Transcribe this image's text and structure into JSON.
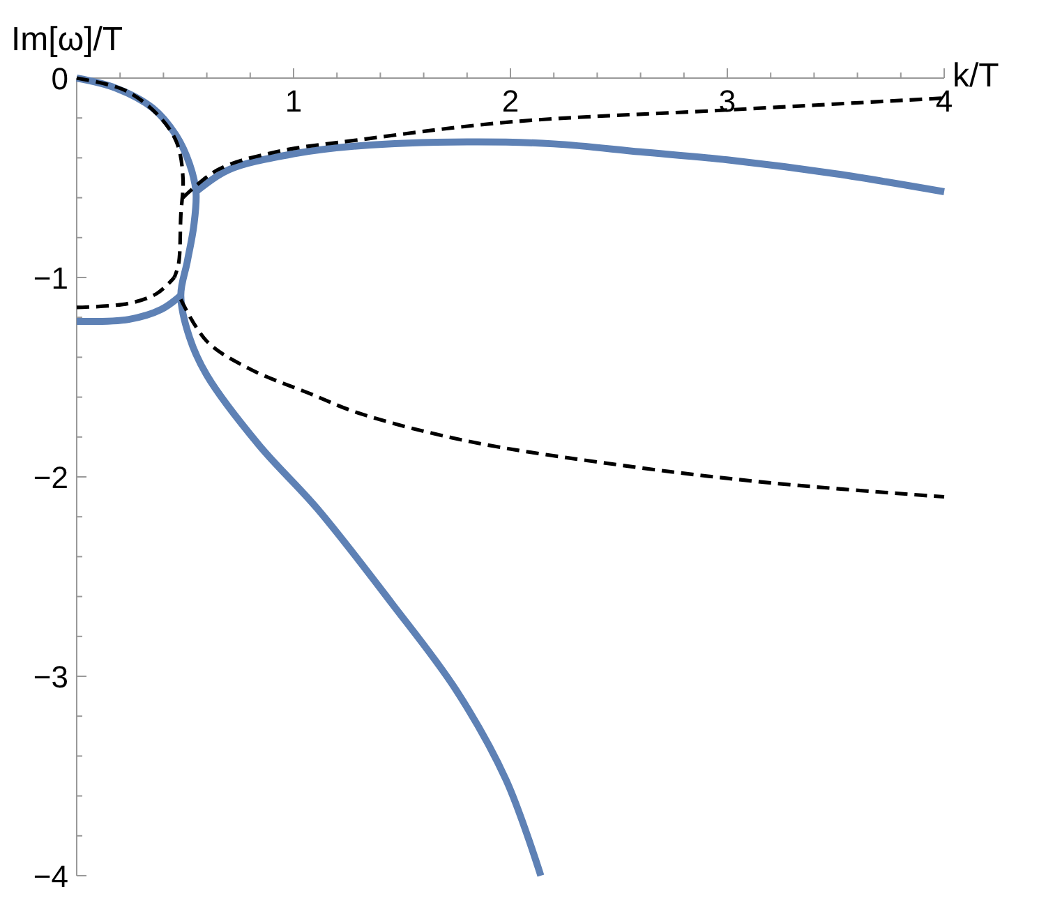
{
  "chart_data": {
    "type": "line",
    "xlabel": "k/T",
    "ylabel": "Im[ω]/T",
    "xlim": [
      0,
      4
    ],
    "ylim": [
      -4,
      0
    ],
    "xticks": [
      {
        "value": 0.2,
        "label": null
      },
      {
        "value": 0.4,
        "label": null
      },
      {
        "value": 0.6,
        "label": null
      },
      {
        "value": 0.8,
        "label": null
      },
      1,
      {
        "value": 1.2,
        "label": null
      },
      {
        "value": 1.4,
        "label": null
      },
      {
        "value": 1.6,
        "label": null
      },
      {
        "value": 1.8,
        "label": null
      },
      2,
      {
        "value": 2.2,
        "label": null
      },
      {
        "value": 2.4,
        "label": null
      },
      {
        "value": 2.6,
        "label": null
      },
      {
        "value": 2.8,
        "label": null
      },
      3,
      {
        "value": 3.2,
        "label": null
      },
      {
        "value": 3.4,
        "label": null
      },
      {
        "value": 3.6,
        "label": null
      },
      {
        "value": 3.8,
        "label": null
      },
      4
    ],
    "yticks": [
      0,
      {
        "value": -0.2,
        "label": null
      },
      {
        "value": -0.4,
        "label": null
      },
      {
        "value": -0.6,
        "label": null
      },
      {
        "value": -0.8,
        "label": null
      },
      -1,
      {
        "value": -1.2,
        "label": null
      },
      {
        "value": -1.4,
        "label": null
      },
      {
        "value": -1.6,
        "label": null
      },
      {
        "value": -1.8,
        "label": null
      },
      -2,
      {
        "value": -2.2,
        "label": null
      },
      {
        "value": -2.4,
        "label": null
      },
      {
        "value": -2.6,
        "label": null
      },
      {
        "value": -2.8,
        "label": null
      },
      -3,
      {
        "value": -3.2,
        "label": null
      },
      {
        "value": -3.4,
        "label": null
      },
      {
        "value": -3.6,
        "label": null
      },
      {
        "value": -3.8,
        "label": null
      },
      -4
    ],
    "grid": false,
    "marker": "none",
    "series": [
      {
        "color": "#5e81b5",
        "line_style": "solid",
        "x": [
          0,
          0.18,
          0.35,
          0.46,
          0.52,
          0.55,
          0.54,
          0.51,
          0.48,
          0.52,
          0.6,
          0.84,
          1.11,
          1.45,
          1.75,
          1.98,
          2.14
        ],
        "values": [
          0,
          -0.05,
          -0.15,
          -0.29,
          -0.43,
          -0.57,
          -0.74,
          -0.92,
          -1.09,
          -1.3,
          -1.49,
          -1.84,
          -2.16,
          -2.63,
          -3.07,
          -3.52,
          -4
        ]
      },
      {
        "color": "#5e81b5",
        "line_style": "solid",
        "x": [
          0,
          0.24,
          0.39,
          0.48
        ],
        "values": [
          -1.22,
          -1.21,
          -1.16,
          -1.09
        ]
      },
      {
        "color": "#5e81b5",
        "line_style": "solid",
        "x": [
          0.55,
          0.7,
          1,
          1.3,
          1.8,
          2.2,
          2.6,
          3,
          3.5,
          4
        ],
        "values": [
          -0.57,
          -0.46,
          -0.38,
          -0.34,
          -0.32,
          -0.33,
          -0.37,
          -0.41,
          -0.48,
          -0.57
        ]
      },
      {
        "color": "#000000",
        "line_style": "dashed",
        "x": [
          0,
          0.22,
          0.37,
          0.46,
          0.49,
          0.48,
          0.47,
          0.45
        ],
        "values": [
          0,
          -0.06,
          -0.18,
          -0.32,
          -0.5,
          -0.69,
          -0.93,
          -1
        ]
      },
      {
        "color": "#000000",
        "line_style": "dashed",
        "x": [
          0,
          0.24,
          0.37,
          0.45
        ],
        "values": [
          -1.15,
          -1.13,
          -1.08,
          -1
        ]
      },
      {
        "color": "#000000",
        "line_style": "dashed",
        "x": [
          0.49,
          0.65,
          0.92,
          1.3,
          2,
          3,
          4
        ],
        "values": [
          -0.6,
          -0.46,
          -0.37,
          -0.31,
          -0.22,
          -0.16,
          -0.1
        ]
      },
      {
        "color": "#000000",
        "line_style": "dashed",
        "x": [
          0.48,
          0.6,
          0.8,
          1.07,
          1.3,
          1.8,
          2.5,
          3.2,
          4
        ],
        "values": [
          -1.11,
          -1.32,
          -1.46,
          -1.58,
          -1.68,
          -1.82,
          -1.94,
          -2.03,
          -2.1
        ]
      }
    ]
  }
}
